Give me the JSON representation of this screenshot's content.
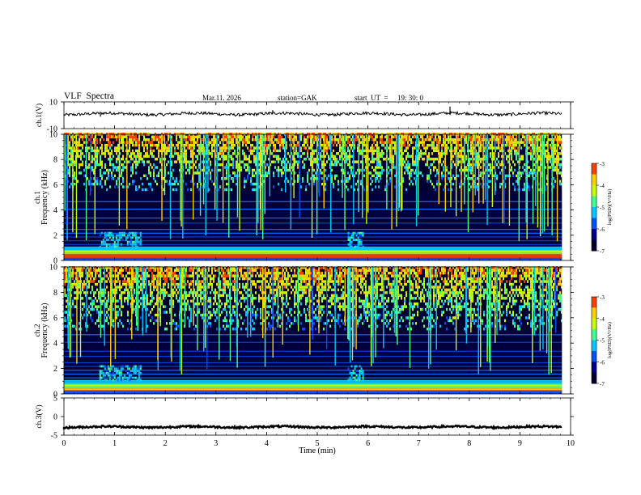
{
  "header": {
    "title": "VLF  Spectra",
    "date": "Mar.11. 2026",
    "station": "station=GAK",
    "start_ut_label": "start  UT  =",
    "start_ut_value": "19: 30: 0"
  },
  "colormap": [
    "#000030",
    "#00008a",
    "#0050ff",
    "#00c8ff",
    "#40ff90",
    "#c8ff00",
    "#ffd000",
    "#ff4000",
    "#c00000"
  ],
  "chart_data": [
    {
      "id": "ch1-waveform",
      "type": "line",
      "ylabel": "ch.1(V)",
      "ylim": [
        -10,
        10
      ],
      "yticks": [
        10,
        -10
      ],
      "xlim": [
        0,
        10
      ],
      "mean_value": 1,
      "grid": false
    },
    {
      "id": "ch1-spectrogram",
      "type": "heatmap",
      "ylabel": "Frequency  (kHz)",
      "channel_label": "ch.1",
      "ylim": [
        0,
        10
      ],
      "yticks": [
        0,
        2,
        4,
        6,
        8,
        10
      ],
      "xlim": [
        0,
        10
      ],
      "data_end_min": 9.83,
      "colorbar": {
        "label": "log(PSD)(V²/Hz)",
        "ticks": [
          -3,
          -4,
          -5,
          -6,
          -7
        ],
        "range": [
          -7,
          -3
        ]
      },
      "features": {
        "noise_band_kHz": [
          0.2,
          1.0
        ],
        "sferic_floor_kHz": 5.5,
        "burst_intervals_min": [
          [
            0.7,
            1.5
          ],
          [
            5.6,
            5.9
          ]
        ]
      }
    },
    {
      "id": "ch2-spectrogram",
      "type": "heatmap",
      "ylabel": "Frequency  (kHz)",
      "channel_label": "ch.2",
      "ylim": [
        0,
        10
      ],
      "yticks": [
        0,
        2,
        4,
        6,
        8,
        10
      ],
      "xlim": [
        0,
        10
      ],
      "data_end_min": 9.83,
      "colorbar": {
        "label": "log(PSD)(V²/Hz)",
        "ticks": [
          -3,
          -4,
          -5,
          -6,
          -7
        ],
        "range": [
          -7,
          -3
        ]
      },
      "features": {
        "noise_band_kHz": [
          0.2,
          1.0
        ],
        "sferic_floor_kHz": 5.0,
        "burst_intervals_min": [
          [
            0.7,
            1.5
          ],
          [
            5.6,
            5.9
          ]
        ]
      }
    },
    {
      "id": "ch3-waveform",
      "type": "line",
      "ylabel": "ch.3(V)",
      "ylim": [
        -5,
        5
      ],
      "yticks": [
        5,
        0,
        -5
      ],
      "xlim": [
        0,
        10
      ],
      "mean_value": -2.8,
      "grid": false
    }
  ],
  "xaxis": {
    "label": "Time  (min)",
    "ticks": [
      0,
      1,
      2,
      3,
      4,
      5,
      6,
      7,
      8,
      9,
      10
    ]
  }
}
